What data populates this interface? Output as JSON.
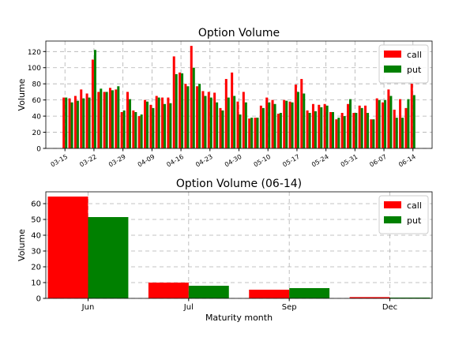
{
  "chart_data": [
    {
      "type": "bar",
      "title": "Option Volume",
      "ylabel": "Volume",
      "categories": [
        "03-15",
        null,
        null,
        null,
        null,
        "03-22",
        null,
        null,
        null,
        null,
        "03-29",
        null,
        null,
        null,
        null,
        "04-09",
        null,
        null,
        null,
        null,
        "04-16",
        null,
        null,
        null,
        null,
        "04-23",
        null,
        null,
        null,
        null,
        "04-30",
        null,
        null,
        null,
        null,
        "05-10",
        null,
        null,
        null,
        null,
        "05-17",
        null,
        null,
        null,
        null,
        "05-24",
        null,
        null,
        null,
        null,
        "05-31",
        null,
        null,
        null,
        null,
        "06-07",
        null,
        null,
        null,
        null,
        "06-14"
      ],
      "series": [
        {
          "name": "call",
          "color": "#ff0000",
          "values": [
            63,
            62,
            65,
            73,
            68,
            110,
            70,
            70,
            75,
            73,
            45,
            70,
            47,
            40,
            60,
            54,
            65,
            63,
            63,
            114,
            94,
            80,
            127,
            77,
            71,
            70,
            69,
            50,
            86,
            94,
            58,
            70,
            37,
            38,
            53,
            63,
            60,
            43,
            60,
            58,
            79,
            86,
            47,
            55,
            54,
            55,
            45,
            36,
            44,
            55,
            44,
            53,
            53,
            36,
            62,
            57,
            73,
            48,
            61,
            50,
            80
          ]
        },
        {
          "name": "put",
          "color": "#008000",
          "values": [
            63,
            57,
            59,
            62,
            63,
            122,
            74,
            70,
            72,
            77,
            47,
            61,
            45,
            42,
            58,
            50,
            63,
            55,
            56,
            92,
            93,
            77,
            100,
            80,
            65,
            63,
            57,
            47,
            63,
            65,
            42,
            57,
            38,
            38,
            50,
            57,
            55,
            44,
            59,
            57,
            70,
            68,
            44,
            46,
            51,
            53,
            45,
            38,
            40,
            61,
            44,
            50,
            44,
            36,
            60,
            60,
            65,
            38,
            38,
            61,
            66
          ]
        }
      ],
      "ylim": [
        0,
        133
      ],
      "yticks": [
        0,
        20,
        40,
        60,
        80,
        100,
        120
      ],
      "grid": true,
      "legend": "upper right"
    },
    {
      "type": "bar",
      "title": "Option Volume (06-14)",
      "ylabel": "Volume",
      "xlabel": "Maturity month",
      "categories": [
        "Jun",
        "Jul",
        "Sep",
        "Dec"
      ],
      "series": [
        {
          "name": "call",
          "color": "#ff0000",
          "values": [
            64.5,
            10,
            5.5,
            0.8
          ]
        },
        {
          "name": "put",
          "color": "#008000",
          "values": [
            51.5,
            8,
            6.5,
            0.5
          ]
        }
      ],
      "ylim": [
        0,
        67.5
      ],
      "yticks": [
        0,
        10,
        20,
        30,
        40,
        50,
        60
      ],
      "grid": true,
      "legend": "upper right"
    }
  ]
}
